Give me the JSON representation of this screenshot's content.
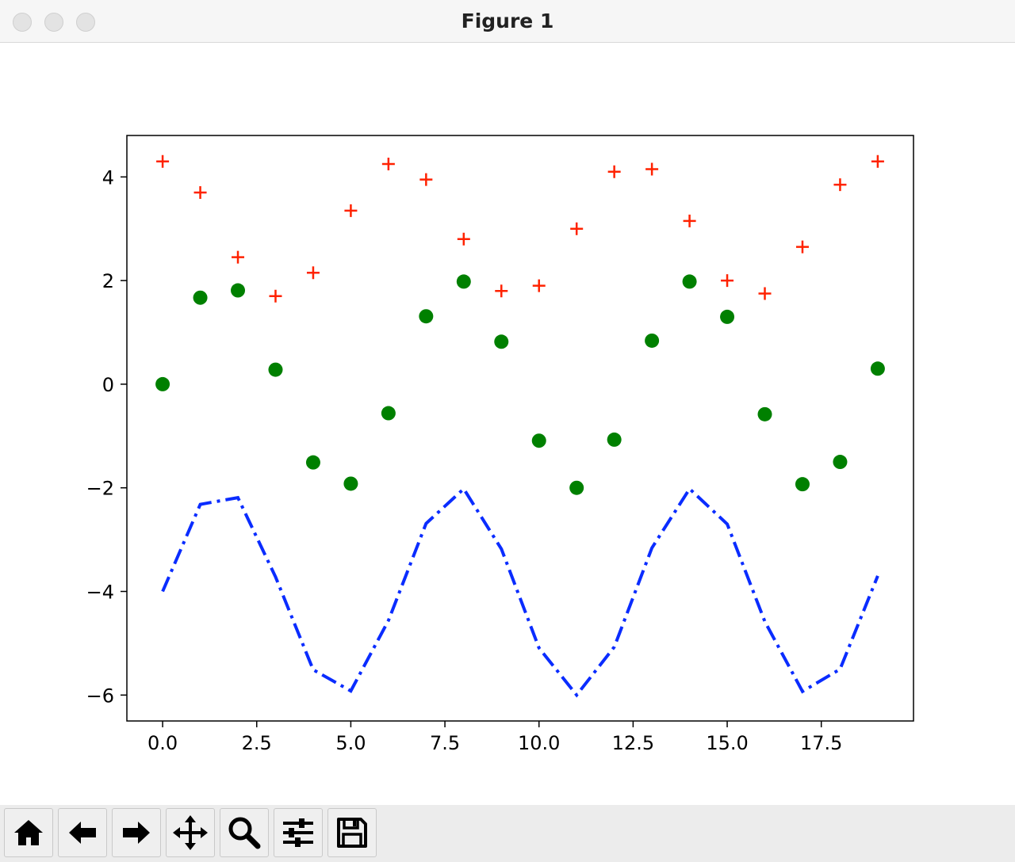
{
  "window": {
    "title": "Figure 1"
  },
  "toolbar": {
    "buttons": [
      {
        "name": "home-button",
        "icon": "home-icon"
      },
      {
        "name": "back-button",
        "icon": "arrow-left-icon"
      },
      {
        "name": "forward-button",
        "icon": "arrow-right-icon"
      },
      {
        "name": "pan-button",
        "icon": "move-icon"
      },
      {
        "name": "zoom-button",
        "icon": "magnifier-icon"
      },
      {
        "name": "configure-subplots-button",
        "icon": "sliders-icon"
      },
      {
        "name": "save-button",
        "icon": "floppy-disk-icon"
      }
    ]
  },
  "chart_data": {
    "type": "line",
    "title": "",
    "xlabel": "",
    "ylabel": "",
    "xlim": [
      -0.95,
      19.95
    ],
    "ylim": [
      -6.5,
      4.8
    ],
    "xticks": [
      0,
      2.5,
      5,
      7.5,
      10,
      12.5,
      15,
      17.5
    ],
    "xtick_labels": [
      "0.0",
      "2.5",
      "5.0",
      "7.5",
      "10.0",
      "12.5",
      "15.0",
      "17.5"
    ],
    "yticks": [
      4,
      2,
      0,
      -2,
      -4,
      -6
    ],
    "ytick_labels": [
      "4",
      "2",
      "0",
      "−2",
      "−4",
      "−6"
    ],
    "grid": false,
    "legend": "none",
    "x": [
      0,
      1,
      2,
      3,
      4,
      5,
      6,
      7,
      8,
      9,
      10,
      11,
      12,
      13,
      14,
      15,
      16,
      17,
      18,
      19
    ],
    "series": [
      {
        "style": "plus",
        "color": "#ff2200",
        "values": [
          4.3,
          3.7,
          2.45,
          1.7,
          2.15,
          3.35,
          4.25,
          3.95,
          2.8,
          1.8,
          1.9,
          3.0,
          4.1,
          4.15,
          3.15,
          2.0,
          1.75,
          2.65,
          3.85,
          4.3
        ]
      },
      {
        "style": "circle",
        "color": "#008000",
        "values": [
          0.0,
          1.67,
          1.81,
          0.28,
          -1.51,
          -1.92,
          -0.56,
          1.31,
          1.98,
          0.82,
          -1.09,
          -2.0,
          -1.07,
          0.84,
          1.98,
          1.3,
          -0.58,
          -1.93,
          -1.5,
          0.3
        ]
      },
      {
        "style": "dashdot",
        "color": "#0a2cff",
        "values": [
          -4.0,
          -2.32,
          -2.19,
          -3.72,
          -5.51,
          -5.92,
          -4.56,
          -2.69,
          -2.02,
          -3.18,
          -5.09,
          -6.0,
          -5.07,
          -3.16,
          -2.02,
          -2.7,
          -4.58,
          -5.93,
          -5.5,
          -3.7
        ]
      }
    ]
  }
}
